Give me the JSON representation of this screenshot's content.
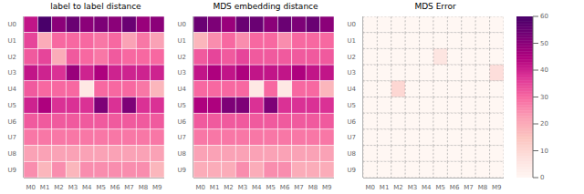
{
  "chart_data": [
    {
      "type": "heatmap",
      "title": "label to label distance",
      "color": "RdPu",
      "grid": true,
      "line_style": "solid",
      "categories": [
        "M0",
        "M1",
        "M2",
        "M3",
        "M4",
        "M5",
        "M6",
        "M7",
        "M8",
        "M9"
      ],
      "rows": [
        "U0",
        "U1",
        "U2",
        "U3",
        "U4",
        "U5",
        "U6",
        "U7",
        "U8",
        "U9"
      ],
      "color_range": [
        0,
        60
      ],
      "values": [
        [
          42,
          60,
          50,
          55,
          50,
          52,
          50,
          55,
          48,
          50
        ],
        [
          35,
          20,
          30,
          30,
          30,
          28,
          30,
          22,
          28,
          22
        ],
        [
          32,
          35,
          20,
          32,
          30,
          28,
          32,
          30,
          30,
          30
        ],
        [
          42,
          40,
          38,
          48,
          40,
          45,
          40,
          40,
          40,
          40
        ],
        [
          32,
          30,
          30,
          30,
          5,
          30,
          30,
          30,
          28,
          18
        ],
        [
          40,
          45,
          38,
          38,
          38,
          52,
          38,
          52,
          38,
          38
        ],
        [
          32,
          32,
          32,
          32,
          32,
          32,
          32,
          32,
          32,
          32
        ],
        [
          28,
          28,
          28,
          28,
          28,
          28,
          28,
          28,
          28,
          28
        ],
        [
          22,
          22,
          22,
          22,
          22,
          22,
          22,
          22,
          22,
          22
        ],
        [
          25,
          18,
          25,
          18,
          25,
          25,
          25,
          25,
          25,
          18
        ]
      ]
    },
    {
      "type": "heatmap",
      "title": "MDS embedding distance",
      "color": "RdPu",
      "grid": true,
      "line_style": "solid",
      "categories": [
        "M0",
        "M1",
        "M2",
        "M3",
        "M4",
        "M5",
        "M6",
        "M7",
        "M8",
        "M9"
      ],
      "rows": [
        "U0",
        "U1",
        "U2",
        "U3",
        "U4",
        "U5",
        "U6",
        "U7",
        "U8",
        "U9"
      ],
      "color_range": [
        0,
        60
      ],
      "values": [
        [
          55,
          52,
          48,
          55,
          55,
          50,
          55,
          52,
          55,
          50
        ],
        [
          18,
          25,
          30,
          25,
          30,
          30,
          25,
          30,
          30,
          30
        ],
        [
          32,
          35,
          32,
          35,
          32,
          32,
          32,
          32,
          32,
          32
        ],
        [
          42,
          45,
          42,
          45,
          42,
          42,
          42,
          45,
          42,
          42
        ],
        [
          30,
          30,
          30,
          30,
          5,
          30,
          5,
          30,
          30,
          18
        ],
        [
          45,
          45,
          52,
          52,
          38,
          52,
          38,
          38,
          38,
          38
        ],
        [
          32,
          32,
          32,
          32,
          32,
          32,
          32,
          32,
          32,
          32
        ],
        [
          28,
          28,
          28,
          28,
          28,
          28,
          28,
          28,
          28,
          28
        ],
        [
          22,
          22,
          22,
          22,
          22,
          22,
          22,
          22,
          22,
          22
        ],
        [
          20,
          20,
          20,
          25,
          20,
          25,
          25,
          20,
          20,
          20
        ]
      ]
    },
    {
      "type": "heatmap",
      "title": "MDS Error",
      "color": "RdPu",
      "grid": true,
      "line_style": "dashed",
      "categories": [
        "M0",
        "M1",
        "M2",
        "M3",
        "M4",
        "M5",
        "M6",
        "M7",
        "M8",
        "M9"
      ],
      "rows": [
        "U0",
        "U1",
        "U2",
        "U3",
        "U4",
        "U5",
        "U6",
        "U7",
        "U8",
        "U9"
      ],
      "color_range": [
        0,
        60
      ],
      "color_ticks": [
        0,
        10,
        20,
        30,
        40,
        50,
        60
      ],
      "values": [
        [
          0,
          0,
          0,
          0,
          0,
          0,
          0,
          0,
          0,
          0
        ],
        [
          0,
          0,
          0,
          0,
          0,
          0,
          0,
          0,
          0,
          0
        ],
        [
          0,
          0,
          0,
          0,
          0,
          6,
          0,
          0,
          0,
          0
        ],
        [
          0,
          0,
          0,
          0,
          0,
          0,
          0,
          0,
          0,
          8
        ],
        [
          0,
          0,
          10,
          0,
          0,
          0,
          0,
          0,
          0,
          0
        ],
        [
          0,
          0,
          0,
          0,
          0,
          0,
          0,
          0,
          0,
          0
        ],
        [
          0,
          0,
          0,
          0,
          0,
          0,
          0,
          0,
          0,
          0
        ],
        [
          0,
          0,
          0,
          0,
          0,
          0,
          0,
          0,
          0,
          0
        ],
        [
          0,
          0,
          0,
          0,
          0,
          0,
          0,
          0,
          0,
          0
        ],
        [
          0,
          0,
          0,
          0,
          0,
          0,
          0,
          0,
          0,
          0
        ]
      ]
    }
  ]
}
